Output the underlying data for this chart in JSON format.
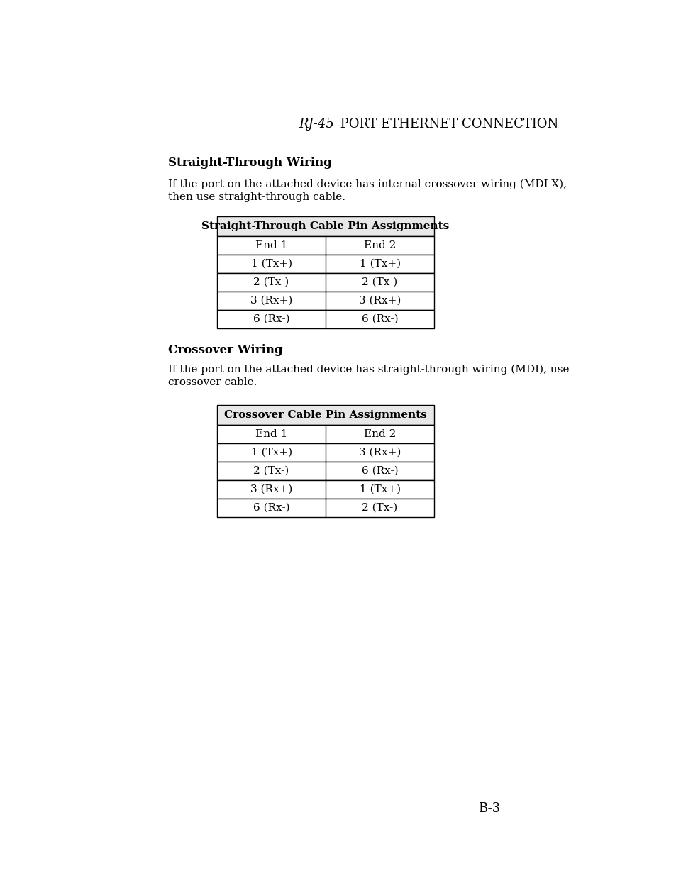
{
  "page_title_italic": "RJ-45",
  "page_title_rest": " PORT ETHERNET CONNECTION",
  "section1_heading": "Straight-Through Wiring",
  "section1_body": "If the port on the attached device has internal crossover wiring (MDI-X),\nthen use straight-through cable.",
  "table1_title": "Straight-Through Cable Pin Assignments",
  "table1_headers": [
    "End 1",
    "End 2"
  ],
  "table1_rows": [
    [
      "1 (Tx+)",
      "1 (Tx+)"
    ],
    [
      "2 (Tx-)",
      "2 (Tx-)"
    ],
    [
      "3 (Rx+)",
      "3 (Rx+)"
    ],
    [
      "6 (Rx-)",
      "6 (Rx-)"
    ]
  ],
  "section2_heading": "Crossover Wiring",
  "section2_body": "If the port on the attached device has straight-through wiring (MDI), use\ncrossover cable.",
  "table2_title": "Crossover Cable Pin Assignments",
  "table2_headers": [
    "End 1",
    "End 2"
  ],
  "table2_rows": [
    [
      "1 (Tx+)",
      "3 (Rx+)"
    ],
    [
      "2 (Tx-)",
      "6 (Rx-)"
    ],
    [
      "3 (Rx+)",
      "1 (Tx+)"
    ],
    [
      "6 (Rx-)",
      "2 (Tx-)"
    ]
  ],
  "page_number": "B-3",
  "bg_color": "#ffffff",
  "text_color": "#000000",
  "table_header_bg": "#d0d0d0",
  "table_border_color": "#000000"
}
